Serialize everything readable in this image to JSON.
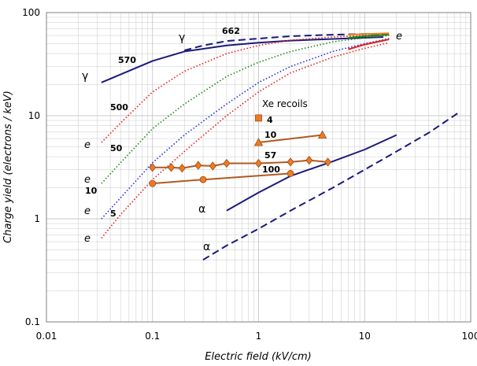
{
  "chart_data": {
    "type": "line",
    "x_scale": "log",
    "y_scale": "log",
    "xlim": [
      0.01,
      100
    ],
    "ylim": [
      0.1,
      100
    ],
    "xlabel": "Electric field (kV/cm)",
    "ylabel": "Charge yield (electrons / keV)",
    "x_ticks": [
      0.01,
      0.1,
      1,
      10,
      100
    ],
    "x_tick_labels": [
      "0.01",
      "0.1",
      "1",
      "10",
      "100"
    ],
    "y_ticks": [
      0.1,
      1,
      10,
      100
    ],
    "y_tick_labels": [
      "0.1",
      "1",
      "10",
      "100"
    ],
    "grid": true,
    "colors": {
      "navy": "#1a1a7a",
      "blue": "#2a2ae0",
      "red": "#e02020",
      "green": "#1a8a1a",
      "brown": "#b05a20",
      "marker": "#ee7a22",
      "grid": "#c8c8c8"
    },
    "series": [
      {
        "name": "gamma 570",
        "color": "#1a1a7a",
        "dash": "solid",
        "x": [
          0.033,
          0.1,
          0.2,
          0.5,
          1,
          2,
          5,
          10,
          15
        ],
        "y": [
          21,
          34,
          42,
          48,
          51,
          53.5,
          55.5,
          57,
          58
        ]
      },
      {
        "name": "gamma 662",
        "color": "#1a1a7a",
        "dash": "dashed",
        "x": [
          0.2,
          0.3,
          0.5,
          1,
          2,
          5,
          10,
          17
        ],
        "y": [
          43,
          48,
          53,
          56,
          59,
          61,
          62,
          62
        ]
      },
      {
        "name": "e 500",
        "color": "#e02020",
        "dash": "dotted",
        "x": [
          0.033,
          0.05,
          0.1,
          0.2,
          0.5,
          1,
          2,
          5,
          10,
          17
        ],
        "y": [
          5.5,
          8.5,
          17,
          27,
          40,
          48,
          54,
          58,
          60,
          62
        ]
      },
      {
        "name": "e 50",
        "color": "#1a8a1a",
        "dash": "dotted",
        "x": [
          0.033,
          0.05,
          0.1,
          0.2,
          0.5,
          1,
          2,
          5,
          10,
          17
        ],
        "y": [
          2.2,
          3.5,
          7.5,
          13,
          24,
          33,
          42,
          52,
          57,
          60
        ]
      },
      {
        "name": "e 10",
        "color": "#2a2ae0",
        "dash": "dotted",
        "x": [
          0.033,
          0.05,
          0.1,
          0.2,
          0.5,
          1,
          2,
          5,
          10,
          17
        ],
        "y": [
          1,
          1.6,
          3.5,
          6.5,
          13,
          21,
          30,
          42,
          50,
          56
        ]
      },
      {
        "name": "e 5",
        "color": "#e02020",
        "dash": "dotted",
        "x": [
          0.033,
          0.05,
          0.1,
          0.2,
          0.5,
          1,
          2,
          5,
          10,
          17
        ],
        "y": [
          0.65,
          1.1,
          2.4,
          4.5,
          10,
          17,
          26,
          37,
          45,
          51
        ]
      },
      {
        "name": "e red solid",
        "color": "#e02020",
        "dash": "solid",
        "x": [
          7,
          10,
          17
        ],
        "y": [
          44,
          49,
          55
        ]
      },
      {
        "name": "e green solid",
        "color": "#1a8a1a",
        "dash": "solid",
        "x": [
          7,
          10,
          17
        ],
        "y": [
          57,
          59,
          61
        ]
      },
      {
        "name": "e orange solid",
        "color": "#ee7a22",
        "dash": "solid",
        "x": [
          7,
          10,
          17
        ],
        "y": [
          61,
          62,
          63
        ]
      },
      {
        "name": "alpha solid",
        "color": "#1a1a7a",
        "dash": "solid",
        "x": [
          0.5,
          1,
          2,
          5,
          10,
          20
        ],
        "y": [
          1.2,
          1.8,
          2.6,
          3.6,
          4.7,
          6.5
        ]
      },
      {
        "name": "alpha dashed",
        "color": "#1a1a7a",
        "dash": "dashed",
        "x": [
          0.3,
          0.5,
          1,
          2,
          5,
          10,
          20,
          40,
          80
        ],
        "y": [
          0.4,
          0.55,
          0.8,
          1.2,
          2,
          3,
          4.5,
          6.8,
          11
        ]
      },
      {
        "name": "Xe recoils 4",
        "color": "#b05a20",
        "dash": "solid",
        "marker": "square",
        "x": [
          1
        ],
        "y": [
          9.5
        ]
      },
      {
        "name": "Xe recoils 10",
        "color": "#b05a20",
        "dash": "solid",
        "marker": "triangle",
        "x": [
          1,
          4
        ],
        "y": [
          5.5,
          6.5
        ]
      },
      {
        "name": "Xe recoils 57",
        "color": "#b05a20",
        "dash": "solid",
        "marker": "diamond",
        "x": [
          0.1,
          0.15,
          0.19,
          0.27,
          0.37,
          0.5,
          1,
          2,
          3,
          4.5
        ],
        "y": [
          3.15,
          3.15,
          3.1,
          3.3,
          3.25,
          3.45,
          3.45,
          3.55,
          3.7,
          3.55
        ]
      },
      {
        "name": "Xe recoils 100",
        "color": "#b05a20",
        "dash": "solid",
        "marker": "circle",
        "x": [
          0.1,
          0.3,
          2
        ],
        "y": [
          2.2,
          2.4,
          2.75
        ]
      }
    ],
    "annotations": {
      "gamma_top": "γ",
      "label_662": "662",
      "label_570": "570",
      "gamma_left": "γ",
      "label_500": "500",
      "label_50": "50",
      "label_10_e": "10",
      "label_5": "5",
      "e_symbol": "e",
      "xe_recoils": "Xe recoils",
      "label_4": "4",
      "label_10_xe": "10",
      "label_57": "57",
      "label_100": "100",
      "alpha_symbol": "α"
    }
  }
}
